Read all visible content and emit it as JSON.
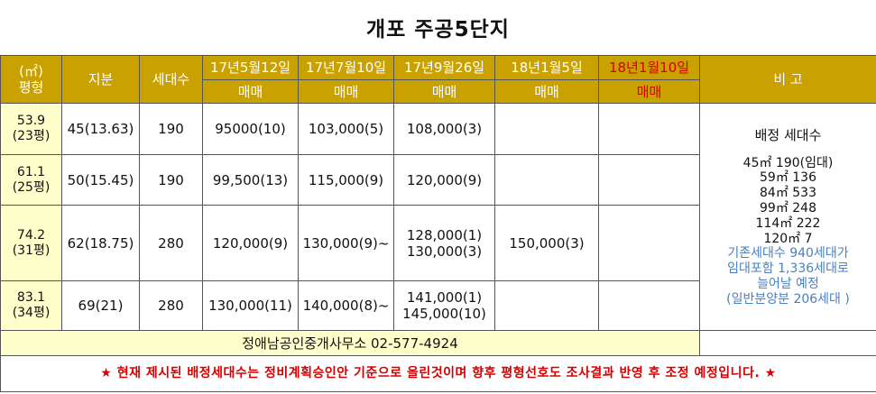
{
  "title": "개포 주공5단지",
  "header": {
    "area_unit": "(㎡)",
    "area_label": "평형",
    "share": "지분",
    "households": "세대수",
    "dates": [
      "17년5월12일",
      "17년7월10일",
      "17년9월26일",
      "18년1월5일",
      "18년1월10일"
    ],
    "trade": "매매",
    "remarks": "비 고"
  },
  "rows": [
    {
      "area": "53.9",
      "pyeong": "(23평)",
      "share": "45(13.63)",
      "households": "190",
      "p1": "95000(10)",
      "p2": "103,000(5)",
      "p3": [
        "108,000(3)"
      ],
      "p4": "",
      "p5": ""
    },
    {
      "area": "61.1",
      "pyeong": "(25평)",
      "share": "50(15.45)",
      "households": "190",
      "p1": "99,500(13)",
      "p2": "115,000(9)",
      "p3": [
        "120,000(9)"
      ],
      "p4": "",
      "p5": ""
    },
    {
      "area": "74.2",
      "pyeong": "(31평)",
      "share": "62(18.75)",
      "households": "280",
      "p1": "120,000(9)",
      "p2": "130,000(9)~",
      "p3": [
        "128,000(1)",
        "130,000(3)"
      ],
      "p4": "150,000(3)",
      "p5": ""
    },
    {
      "area": "83.1",
      "pyeong": "(34평)",
      "share": "69(21)",
      "households": "280",
      "p1": "130,000(11)",
      "p2": "140,000(8)~",
      "p3": [
        "141,000(1)",
        "145,000(10)"
      ],
      "p4": "",
      "p5": ""
    }
  ],
  "remarks": {
    "heading": "배정 세대수",
    "lines": [
      "45㎡ 190(임대)",
      "59㎡ 136",
      "84㎡ 533",
      "99㎡ 248",
      "114㎡ 222",
      "120㎡ 7"
    ],
    "blue_lines": [
      "기존세대수 940세대가",
      "임대포함 1,336세대로",
      "늘어날 예정",
      "(일반분양분 206세대 )"
    ]
  },
  "office": "정애남공인중개사무소 02-577-4924",
  "notice": {
    "star": "★",
    "text": "현재 제시된 배정세대수는 정비계획승인안 기준으로 올린것이며 향후 평형선호도 조사결과 반영 후 조정 예정입니다."
  },
  "colors": {
    "header_bg": "#c9a100",
    "area_bg": "#ffffcc",
    "red": "#d60000",
    "blue": "#4a7fc1"
  }
}
